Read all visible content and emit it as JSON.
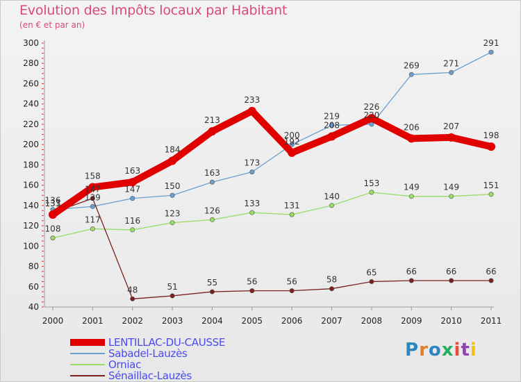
{
  "title": "Evolution des Impôts locaux par Habitant",
  "subtitle": "(en € et par an)",
  "logo": {
    "text": "Proxiti",
    "colors": [
      "#2e86c1",
      "#e67e22",
      "#2e86c1",
      "#27ae60",
      "#e74c3c",
      "#8e44ad",
      "#f1c40f"
    ]
  },
  "chart_data": {
    "type": "line",
    "title": "Evolution des Impôts locaux par Habitant",
    "subtitle": "(en € et par an)",
    "xlabel": "",
    "ylabel": "",
    "x": [
      "2000",
      "2001",
      "2002",
      "2003",
      "2004",
      "2005",
      "2006",
      "2007",
      "2008",
      "2009",
      "2010",
      "2011"
    ],
    "ylim": [
      40,
      300
    ],
    "yticks": [
      40,
      60,
      80,
      100,
      120,
      140,
      160,
      180,
      200,
      220,
      240,
      260,
      280,
      300
    ],
    "grid": false,
    "legend_position": "bottom-left",
    "series": [
      {
        "name": "LENTILLAC-DU-CAUSSE",
        "color": "#e00000",
        "emphasis": true,
        "values": [
          131,
          158,
          163,
          184,
          213,
          233,
          192,
          208,
          226,
          206,
          207,
          198
        ]
      },
      {
        "name": "Sabadel-Lauzès",
        "color": "#6a9fd0",
        "emphasis": false,
        "values": [
          136,
          139,
          147,
          150,
          163,
          173,
          200,
          219,
          220,
          269,
          271,
          291
        ]
      },
      {
        "name": "Orniac",
        "color": "#99dd66",
        "emphasis": false,
        "values": [
          108,
          117,
          116,
          123,
          126,
          133,
          131,
          140,
          153,
          149,
          149,
          151
        ]
      },
      {
        "name": "Sénaillac-Lauzès",
        "color": "#7a2020",
        "emphasis": false,
        "values": [
          133,
          147,
          48,
          51,
          55,
          56,
          56,
          58,
          65,
          66,
          66,
          66
        ]
      }
    ]
  }
}
